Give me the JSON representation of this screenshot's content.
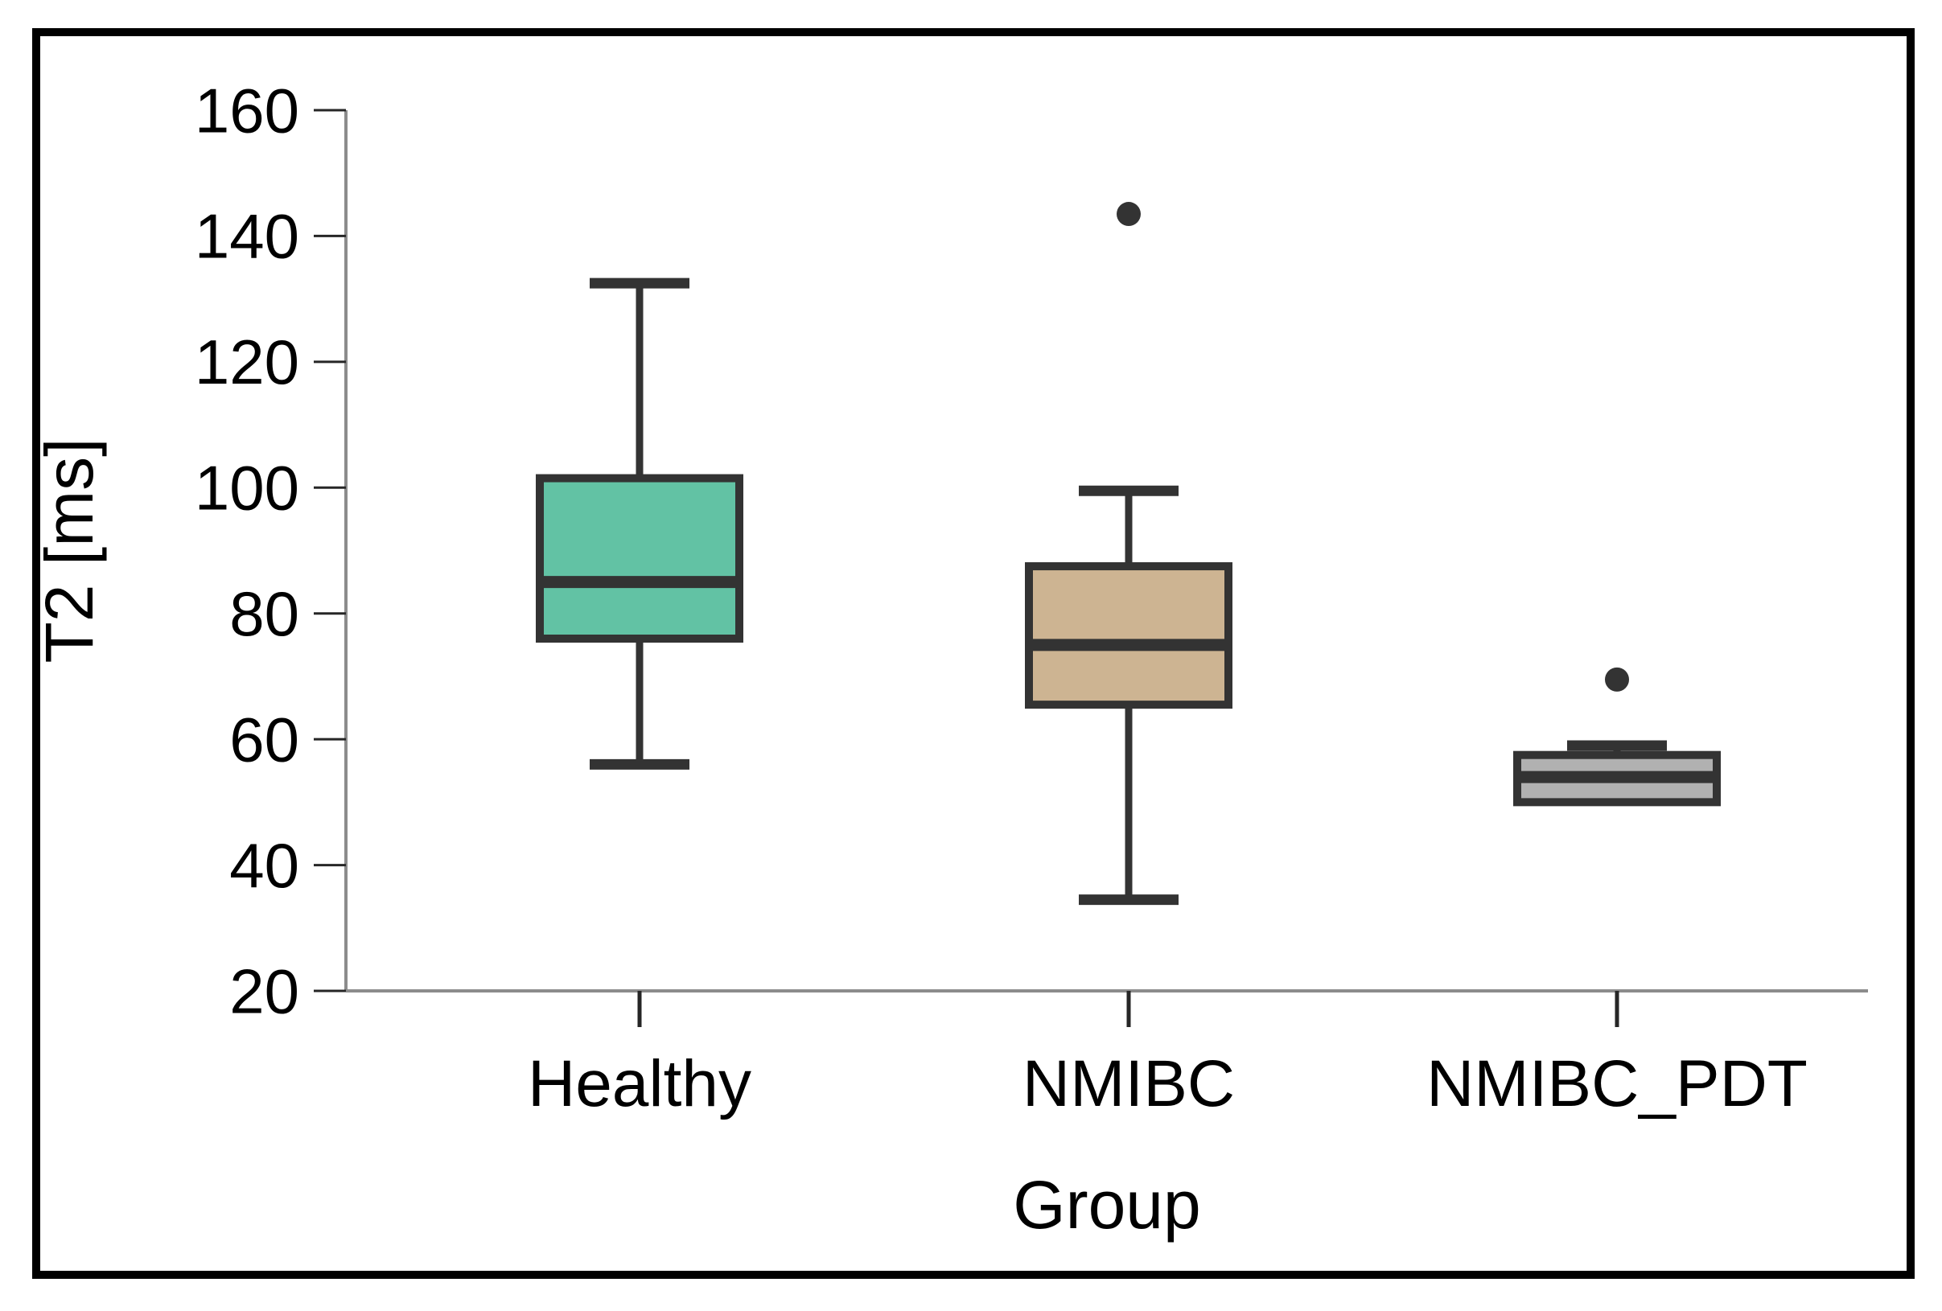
{
  "figure": {
    "background": "#ffffff",
    "border_color": "#000000",
    "border_width": 10
  },
  "chart_data": {
    "type": "boxplot",
    "title": "",
    "xlabel": "Group",
    "ylabel": "T2 [ms]",
    "ylim": [
      20,
      160
    ],
    "yticks": [
      20,
      40,
      60,
      80,
      100,
      120,
      140,
      160
    ],
    "ytick_labels": [
      "20",
      "40",
      "60",
      "80",
      "100",
      "120",
      "140",
      "160"
    ],
    "grid": false,
    "legend": "none",
    "categories": [
      "Healthy",
      "NMIBC",
      "NMIBC_PDT"
    ],
    "series": [
      {
        "group": "Healthy",
        "whisker_low": 56,
        "q1": 76,
        "median": 85,
        "q3": 101.5,
        "whisker_high": 132.5,
        "outliers": [],
        "fill": "#62C2A4"
      },
      {
        "group": "NMIBC",
        "whisker_low": 34.5,
        "q1": 65.5,
        "median": 75,
        "q3": 87.5,
        "whisker_high": 99.5,
        "outliers": [
          143.5
        ],
        "fill": "#CDB492"
      },
      {
        "group": "NMIBC_PDT",
        "whisker_low": null,
        "q1": 50,
        "median": 54,
        "q3": 57.5,
        "whisker_high": 59,
        "outliers": [
          69.5
        ],
        "fill": "#B1B1B1"
      }
    ],
    "colors": {
      "box_stroke": "#333333",
      "median_stroke": "#333333",
      "whisker_stroke": "#333333",
      "outlier_fill": "#333333",
      "axis_line": "#8c8c8c",
      "tick_mark": "#262626",
      "text": "#000000"
    }
  }
}
